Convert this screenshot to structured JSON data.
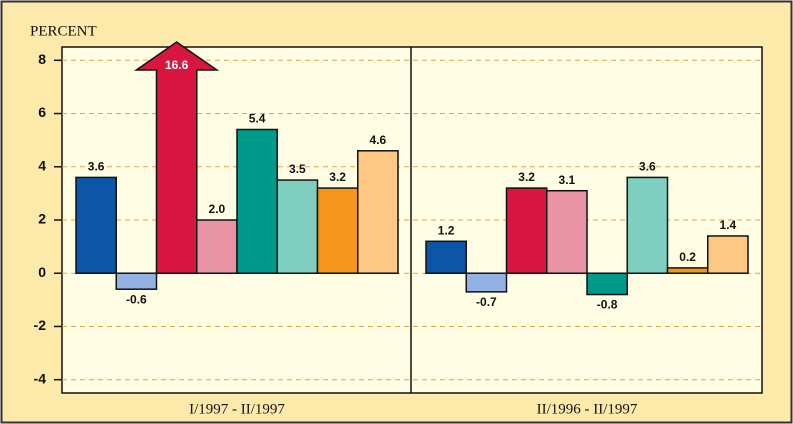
{
  "chart_data": {
    "type": "bar",
    "y_label": "PERCENT",
    "ylim": [
      -4.5,
      8.5
    ],
    "yticks": [
      8,
      6,
      4,
      2,
      0,
      -2,
      -4
    ],
    "grid": true,
    "colors": [
      "#0b56a6",
      "#93b1e2",
      "#d8163f",
      "#e994a6",
      "#00998a",
      "#7fcfc1",
      "#f5951c",
      "#fdc884"
    ],
    "panels": [
      {
        "x_label": "I/1997 - II/1997",
        "values": [
          3.6,
          -0.6,
          16.6,
          2.0,
          5.4,
          3.5,
          3.2,
          4.6
        ],
        "value_labels": [
          "3.6",
          "-0.6",
          "16.6",
          "2.0",
          "5.4",
          "3.5",
          "3.2",
          "4.6"
        ]
      },
      {
        "x_label": "II/1996 - II/1997",
        "values": [
          1.2,
          -0.7,
          3.2,
          3.1,
          -0.8,
          3.6,
          0.2,
          1.4
        ],
        "value_labels": [
          "1.2",
          "-0.7",
          "3.2",
          "3.1",
          "-0.8",
          "3.6",
          "0.2",
          "1.4"
        ]
      }
    ]
  }
}
